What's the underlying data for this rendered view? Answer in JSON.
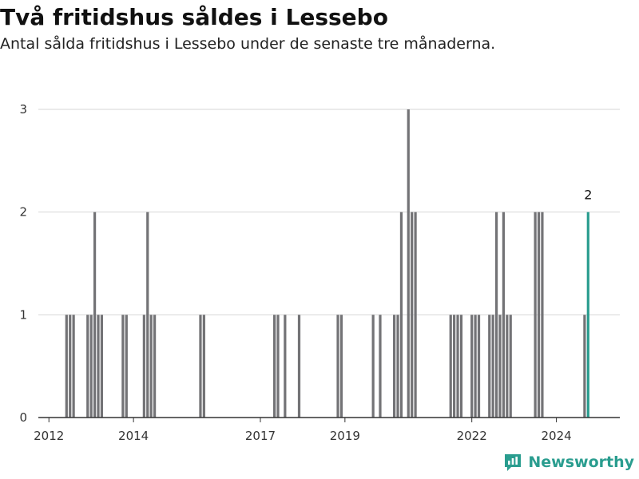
{
  "title": "Två fritidshus såldes i Lessebo",
  "subtitle": "Antal sålda fritidshus i Lessebo under de senaste tre månaderna.",
  "brand": {
    "name": "Newsworthy",
    "icon": "newsworthy-logo-icon",
    "color": "#2a9d8f"
  },
  "chart_data": {
    "type": "bar",
    "title": "Två fritidshus såldes i Lessebo",
    "subtitle": "Antal sålda fritidshus i Lessebo under de senaste tre månaderna.",
    "xlabel": "",
    "ylabel": "",
    "xlim": [
      "2011-10",
      "2025-07"
    ],
    "ylim": [
      0,
      3
    ],
    "yticks": [
      0,
      1,
      2,
      3
    ],
    "xticks": [
      "2012",
      "2014",
      "2017",
      "2019",
      "2022",
      "2024"
    ],
    "grid": true,
    "bar_color": "#737376",
    "highlight_color": "#2a9d8f",
    "series": [
      {
        "values": [
          {
            "x": "2012-06",
            "y": 1
          },
          {
            "x": "2012-07",
            "y": 1
          },
          {
            "x": "2012-08",
            "y": 1
          },
          {
            "x": "2012-12",
            "y": 1
          },
          {
            "x": "2013-01",
            "y": 1
          },
          {
            "x": "2013-02",
            "y": 2
          },
          {
            "x": "2013-03",
            "y": 1
          },
          {
            "x": "2013-04",
            "y": 1
          },
          {
            "x": "2013-10",
            "y": 1
          },
          {
            "x": "2013-11",
            "y": 1
          },
          {
            "x": "2014-04",
            "y": 1
          },
          {
            "x": "2014-05",
            "y": 2
          },
          {
            "x": "2014-06",
            "y": 1
          },
          {
            "x": "2014-07",
            "y": 1
          },
          {
            "x": "2015-08",
            "y": 1
          },
          {
            "x": "2015-09",
            "y": 1
          },
          {
            "x": "2017-05",
            "y": 1
          },
          {
            "x": "2017-06",
            "y": 1
          },
          {
            "x": "2017-08",
            "y": 1
          },
          {
            "x": "2017-12",
            "y": 1
          },
          {
            "x": "2018-11",
            "y": 1
          },
          {
            "x": "2018-12",
            "y": 1
          },
          {
            "x": "2019-09",
            "y": 1
          },
          {
            "x": "2019-11",
            "y": 1
          },
          {
            "x": "2020-03",
            "y": 1
          },
          {
            "x": "2020-04",
            "y": 1
          },
          {
            "x": "2020-05",
            "y": 2
          },
          {
            "x": "2020-07",
            "y": 3
          },
          {
            "x": "2020-08",
            "y": 2
          },
          {
            "x": "2020-09",
            "y": 2
          },
          {
            "x": "2021-07",
            "y": 1
          },
          {
            "x": "2021-08",
            "y": 1
          },
          {
            "x": "2021-09",
            "y": 1
          },
          {
            "x": "2021-10",
            "y": 1
          },
          {
            "x": "2022-01",
            "y": 1
          },
          {
            "x": "2022-02",
            "y": 1
          },
          {
            "x": "2022-03",
            "y": 1
          },
          {
            "x": "2022-06",
            "y": 1
          },
          {
            "x": "2022-07",
            "y": 1
          },
          {
            "x": "2022-08",
            "y": 2
          },
          {
            "x": "2022-09",
            "y": 1
          },
          {
            "x": "2022-10",
            "y": 2
          },
          {
            "x": "2022-11",
            "y": 1
          },
          {
            "x": "2022-12",
            "y": 1
          },
          {
            "x": "2023-07",
            "y": 2
          },
          {
            "x": "2023-08",
            "y": 2
          },
          {
            "x": "2023-09",
            "y": 2
          },
          {
            "x": "2024-09",
            "y": 1
          },
          {
            "x": "2024-10",
            "y": 2,
            "highlight": true,
            "label": "2"
          }
        ]
      }
    ]
  }
}
